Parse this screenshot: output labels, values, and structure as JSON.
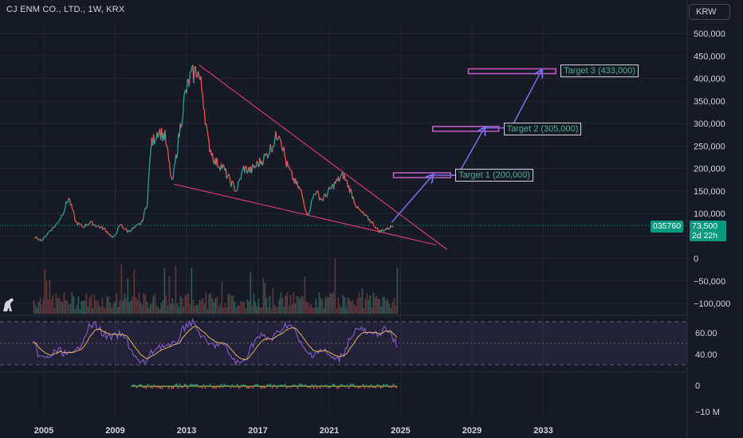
{
  "header": {
    "title": "CJ ENM CO., LTD., 1W, KRX",
    "currency": "KRW"
  },
  "price_tag": {
    "ticker": "035760",
    "price": "73,500",
    "countdown": "2d 22h"
  },
  "targets": [
    {
      "label": "Target 1 (200,000)",
      "value": 200000
    },
    {
      "label": "Target 2 (305,000)",
      "value": 305000
    },
    {
      "label": "Target 3 (433,000)",
      "value": 433000
    }
  ],
  "colors": {
    "background": "#161a25",
    "price_up": "#26a69a",
    "price_down": "#ef5350",
    "trendline": "#f23f7a",
    "target_box": "#c65dd0",
    "arrow": "#7b6ff0",
    "rsi": "#7e57c2",
    "rsi_signal": "#e0b45b",
    "badge": "#089981"
  },
  "chart_data": {
    "type": "line",
    "title": "CJ ENM CO., LTD., 1W, KRX",
    "x_ticks": [
      "2005",
      "2009",
      "2013",
      "2017",
      "2021",
      "2025",
      "2029",
      "2033"
    ],
    "price_axis": {
      "ticks": [
        "500,000",
        "450,000",
        "400,000",
        "350,000",
        "300,000",
        "250,000",
        "200,000",
        "150,000",
        "100,000",
        "50,000",
        "0",
        "−50,000",
        "−100,000"
      ],
      "range": [
        -100000,
        500000
      ],
      "last_price": 73500
    },
    "price_series": {
      "x": [
        2004.5,
        2004.9,
        2005.3,
        2005.7,
        2006.0,
        2006.4,
        2006.8,
        2007.2,
        2007.6,
        2008.0,
        2008.4,
        2008.9,
        2009.3,
        2009.7,
        2010.1,
        2010.5,
        2010.8,
        2011.0,
        2011.4,
        2011.8,
        2012.2,
        2012.5,
        2012.9,
        2013.2,
        2013.6,
        2013.9,
        2014.2,
        2014.6,
        2015.0,
        2015.4,
        2015.8,
        2016.2,
        2016.6,
        2017.0,
        2017.4,
        2017.8,
        2018.2,
        2018.6,
        2019.0,
        2019.4,
        2019.8,
        2020.2,
        2020.6,
        2021.0,
        2021.4,
        2021.8,
        2022.2,
        2022.6,
        2023.0,
        2023.4,
        2023.8,
        2024.2,
        2024.6
      ],
      "y": [
        47000,
        40000,
        60000,
        75000,
        95000,
        135000,
        80000,
        70000,
        80000,
        72000,
        65000,
        45000,
        75000,
        60000,
        68000,
        80000,
        125000,
        250000,
        285000,
        270000,
        165000,
        250000,
        360000,
        400000,
        420000,
        370000,
        260000,
        215000,
        205000,
        175000,
        150000,
        200000,
        195000,
        210000,
        225000,
        250000,
        285000,
        210000,
        175000,
        150000,
        95000,
        150000,
        130000,
        150000,
        170000,
        185000,
        150000,
        110000,
        95000,
        80000,
        60000,
        65000,
        73500
      ]
    },
    "trendlines": [
      {
        "from": [
          2012.3,
          165000
        ],
        "to": [
          2027.0,
          30000
        ]
      },
      {
        "from": [
          2013.7,
          430000
        ],
        "to": [
          2027.6,
          20000
        ]
      }
    ],
    "projection_path": [
      [
        2024.5,
        80000
      ],
      [
        2026.8,
        185000
      ],
      [
        2028.2,
        185000
      ],
      [
        2029.7,
        290000
      ],
      [
        2031.2,
        290000
      ],
      [
        2032.9,
        418000
      ]
    ],
    "rsi_axis": {
      "ticks": [
        "60.00",
        "40.00"
      ]
    },
    "bottom_axis": {
      "ticks": [
        "0",
        "−10 M"
      ]
    }
  }
}
